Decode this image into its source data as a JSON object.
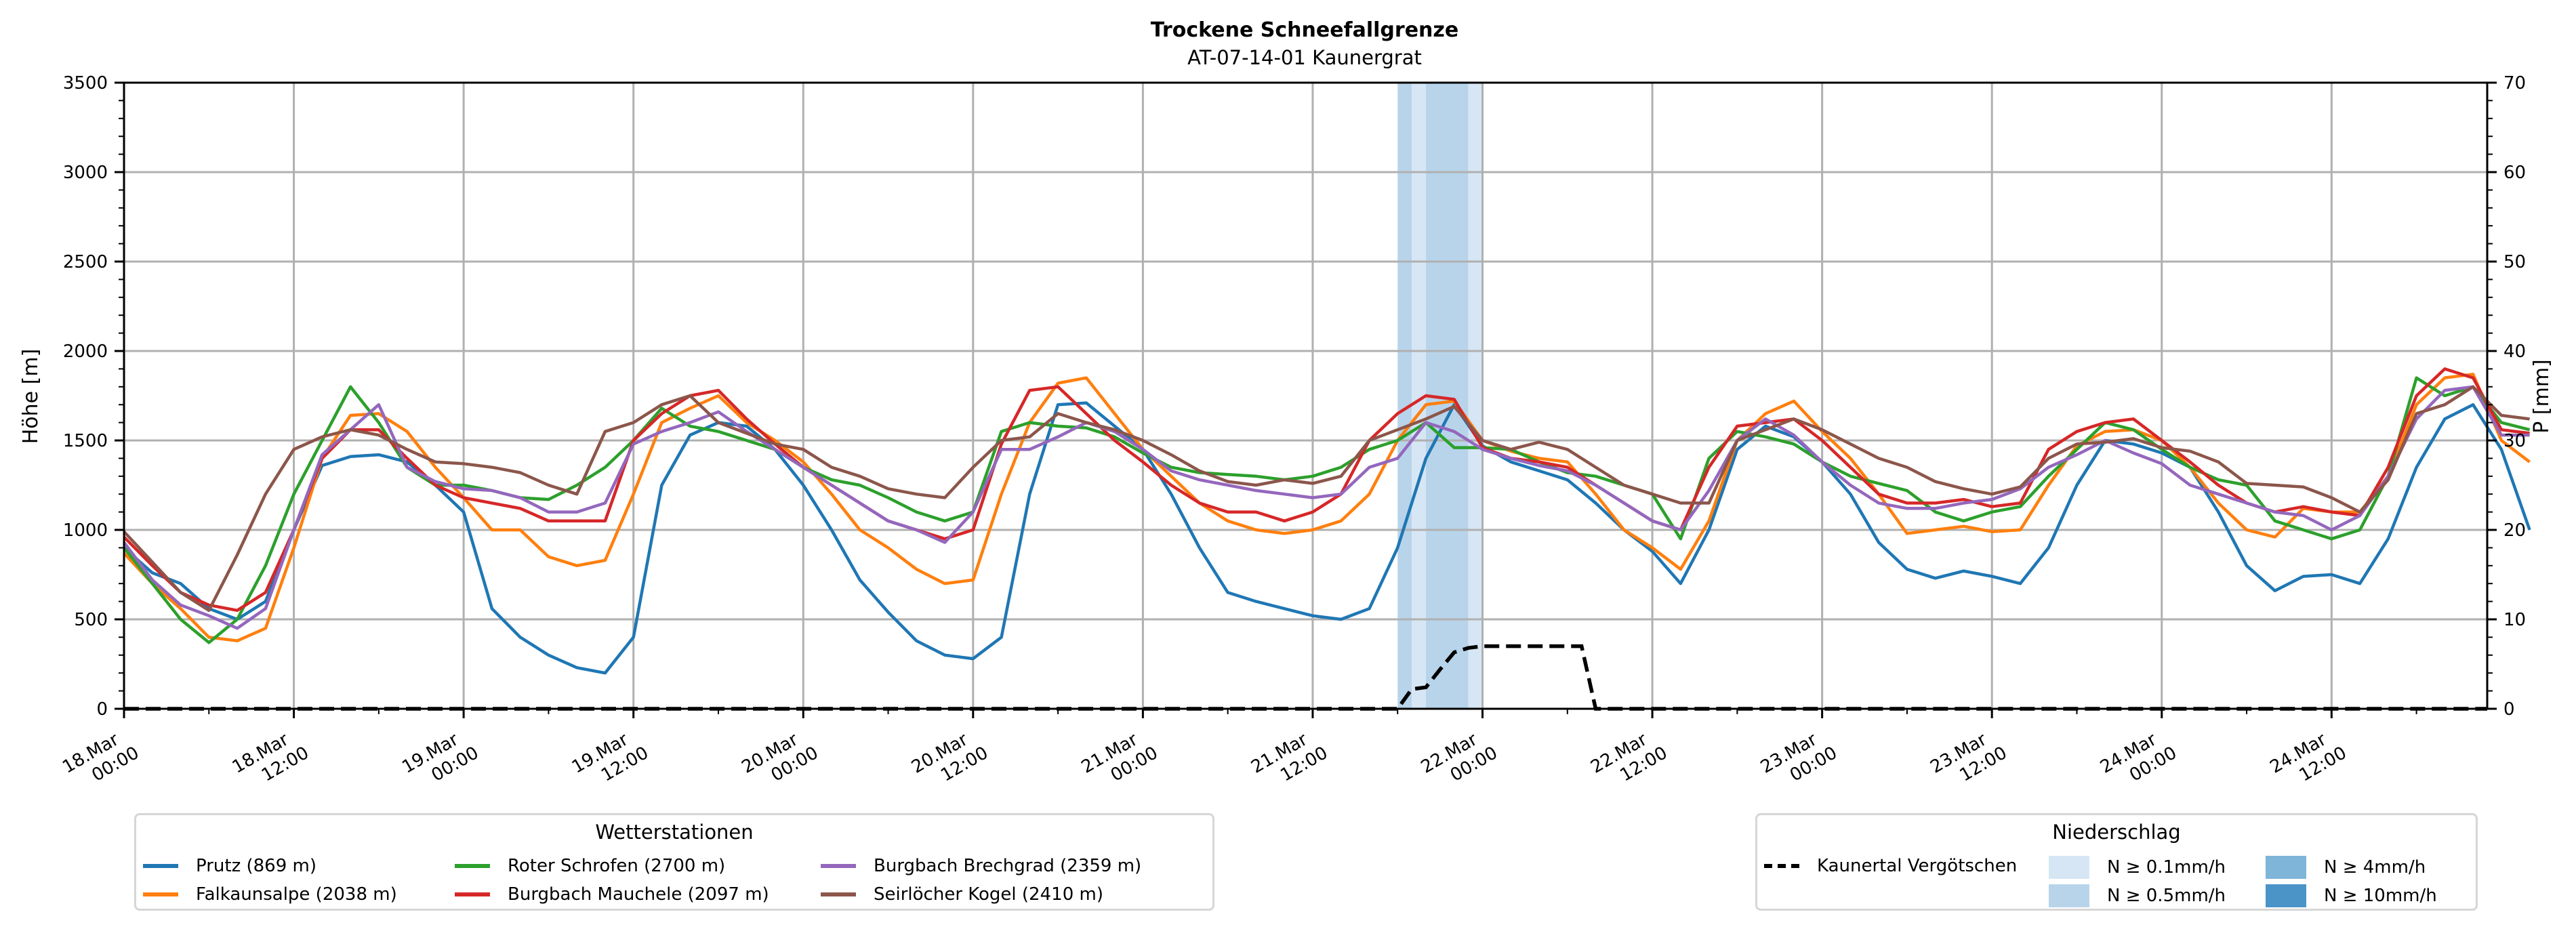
{
  "chart_data": {
    "type": "line",
    "title": "Trockene Schneefallgrenze",
    "subtitle": "AT-07-14-01 Kaunergrat",
    "ylabel_left": "Höhe [m]",
    "ylabel_right": "P [mm]",
    "ylim_left": [
      0,
      3500
    ],
    "ylim_right": [
      0,
      70
    ],
    "yticks_left": [
      "0",
      "500",
      "1000",
      "1500",
      "2000",
      "2500",
      "3000",
      "3500"
    ],
    "yticks_right": [
      "0",
      "10",
      "20",
      "30",
      "40",
      "50",
      "60",
      "70"
    ],
    "grid": true,
    "x_unit": "hours since 18.Mar 00:00",
    "x_range_hours": [
      0,
      167
    ],
    "x_ticks": [
      {
        "hour": 0,
        "line1": "18.Mar",
        "line2": "00:00"
      },
      {
        "hour": 12,
        "line1": "18.Mar",
        "line2": "12:00"
      },
      {
        "hour": 24,
        "line1": "19.Mar",
        "line2": "00:00"
      },
      {
        "hour": 36,
        "line1": "19.Mar",
        "line2": "12:00"
      },
      {
        "hour": 48,
        "line1": "20.Mar",
        "line2": "00:00"
      },
      {
        "hour": 60,
        "line1": "20.Mar",
        "line2": "12:00"
      },
      {
        "hour": 72,
        "line1": "21.Mar",
        "line2": "00:00"
      },
      {
        "hour": 84,
        "line1": "21.Mar",
        "line2": "12:00"
      },
      {
        "hour": 96,
        "line1": "22.Mar",
        "line2": "00:00"
      },
      {
        "hour": 108,
        "line1": "22.Mar",
        "line2": "12:00"
      },
      {
        "hour": 120,
        "line1": "23.Mar",
        "line2": "00:00"
      },
      {
        "hour": 132,
        "line1": "23.Mar",
        "line2": "12:00"
      },
      {
        "hour": 144,
        "line1": "24.Mar",
        "line2": "00:00"
      },
      {
        "hour": 156,
        "line1": "24.Mar",
        "line2": "12:00"
      }
    ],
    "x_step_hours": 2,
    "series": [
      {
        "name": "Prutz (869 m)",
        "color": "#1f77b4",
        "values": [
          900,
          760,
          700,
          560,
          500,
          600,
          1000,
          1360,
          1410,
          1420,
          1380,
          1250,
          1100,
          560,
          400,
          300,
          230,
          200,
          400,
          1250,
          1530,
          1600,
          1580,
          1450,
          1250,
          1000,
          720,
          540,
          380,
          300,
          280,
          400,
          1200,
          1700,
          1710,
          1580,
          1450,
          1200,
          900,
          650,
          600,
          560,
          520,
          500,
          560,
          900,
          1400,
          1700,
          1470,
          1380,
          1330,
          1280,
          1150,
          1000,
          880,
          700,
          1000,
          1450,
          1580,
          1520,
          1380,
          1200,
          930,
          780,
          730,
          770,
          740,
          700,
          900,
          1250,
          1500,
          1480,
          1430,
          1350,
          1100,
          800,
          660,
          740,
          750,
          700,
          950,
          1350,
          1620,
          1700,
          1450,
          1000
        ]
      },
      {
        "name": "Falkaunsalpe (2038 m)",
        "color": "#ff7f0e",
        "values": [
          870,
          700,
          560,
          400,
          380,
          450,
          900,
          1400,
          1640,
          1650,
          1550,
          1350,
          1180,
          1000,
          1000,
          850,
          800,
          830,
          1200,
          1600,
          1680,
          1750,
          1600,
          1500,
          1380,
          1200,
          1000,
          900,
          780,
          700,
          720,
          1200,
          1600,
          1820,
          1850,
          1650,
          1450,
          1300,
          1150,
          1050,
          1000,
          980,
          1000,
          1050,
          1200,
          1500,
          1700,
          1720,
          1500,
          1440,
          1400,
          1380,
          1200,
          1000,
          900,
          780,
          1050,
          1500,
          1650,
          1720,
          1550,
          1400,
          1200,
          980,
          1000,
          1020,
          990,
          1000,
          1250,
          1470,
          1550,
          1560,
          1500,
          1350,
          1150,
          1000,
          960,
          1120,
          1100,
          1100,
          1300,
          1700,
          1850,
          1870,
          1500,
          1380
        ]
      },
      {
        "name": "Roter Schrofen (2700 m)",
        "color": "#2ca02c",
        "values": [
          900,
          700,
          500,
          370,
          500,
          800,
          1200,
          1500,
          1800,
          1600,
          1350,
          1250,
          1250,
          1220,
          1180,
          1170,
          1250,
          1350,
          1500,
          1680,
          1580,
          1550,
          1500,
          1450,
          1350,
          1280,
          1250,
          1180,
          1100,
          1050,
          1100,
          1550,
          1600,
          1580,
          1570,
          1520,
          1430,
          1350,
          1320,
          1310,
          1300,
          1280,
          1300,
          1350,
          1450,
          1500,
          1600,
          1460,
          1460,
          1450,
          1380,
          1320,
          1300,
          1250,
          1200,
          950,
          1400,
          1550,
          1520,
          1480,
          1380,
          1300,
          1260,
          1220,
          1100,
          1050,
          1100,
          1130,
          1300,
          1450,
          1600,
          1560,
          1450,
          1350,
          1280,
          1250,
          1050,
          1000,
          950,
          1000,
          1300,
          1850,
          1750,
          1800,
          1600,
          1560
        ]
      },
      {
        "name": "Burgbach Mauchele (2097 m)",
        "color": "#d62728",
        "values": [
          960,
          800,
          650,
          580,
          550,
          650,
          1000,
          1400,
          1560,
          1560,
          1400,
          1250,
          1180,
          1150,
          1120,
          1050,
          1050,
          1050,
          1500,
          1650,
          1750,
          1780,
          1620,
          1480,
          1350,
          1250,
          1150,
          1050,
          1000,
          950,
          1000,
          1480,
          1780,
          1800,
          1650,
          1500,
          1380,
          1250,
          1150,
          1100,
          1100,
          1050,
          1100,
          1200,
          1500,
          1650,
          1750,
          1730,
          1460,
          1400,
          1380,
          1350,
          1250,
          1150,
          1050,
          1000,
          1350,
          1580,
          1600,
          1620,
          1500,
          1350,
          1200,
          1150,
          1150,
          1170,
          1130,
          1150,
          1450,
          1550,
          1600,
          1620,
          1500,
          1380,
          1250,
          1150,
          1100,
          1130,
          1100,
          1080,
          1350,
          1750,
          1900,
          1850,
          1560,
          1540
        ]
      },
      {
        "name": "Burgbach Brechgrad (2359 m)",
        "color": "#9467bd",
        "values": [
          930,
          720,
          580,
          520,
          450,
          560,
          1000,
          1420,
          1560,
          1700,
          1350,
          1270,
          1230,
          1220,
          1180,
          1100,
          1100,
          1150,
          1480,
          1550,
          1600,
          1660,
          1550,
          1450,
          1350,
          1250,
          1150,
          1050,
          1000,
          930,
          1100,
          1450,
          1450,
          1520,
          1600,
          1550,
          1450,
          1330,
          1280,
          1250,
          1220,
          1200,
          1180,
          1200,
          1350,
          1400,
          1600,
          1550,
          1450,
          1400,
          1360,
          1330,
          1250,
          1150,
          1050,
          1000,
          1220,
          1500,
          1620,
          1530,
          1380,
          1250,
          1150,
          1120,
          1120,
          1150,
          1170,
          1230,
          1350,
          1420,
          1500,
          1430,
          1370,
          1250,
          1200,
          1150,
          1100,
          1080,
          1000,
          1080,
          1300,
          1620,
          1780,
          1800,
          1530,
          1530
        ]
      },
      {
        "name": "Seirlöcher Kogel (2410 m)",
        "color": "#8c564b",
        "values": [
          990,
          820,
          650,
          550,
          860,
          1200,
          1450,
          1520,
          1560,
          1530,
          1450,
          1380,
          1370,
          1350,
          1320,
          1250,
          1200,
          1550,
          1600,
          1700,
          1750,
          1600,
          1540,
          1480,
          1450,
          1350,
          1300,
          1230,
          1200,
          1180,
          1350,
          1500,
          1520,
          1650,
          1600,
          1560,
          1500,
          1420,
          1330,
          1270,
          1250,
          1280,
          1260,
          1300,
          1500,
          1560,
          1620,
          1690,
          1500,
          1450,
          1490,
          1450,
          1350,
          1250,
          1200,
          1150,
          1150,
          1500,
          1560,
          1620,
          1560,
          1480,
          1400,
          1350,
          1270,
          1230,
          1200,
          1240,
          1400,
          1480,
          1490,
          1510,
          1460,
          1440,
          1380,
          1260,
          1250,
          1240,
          1180,
          1100,
          1280,
          1650,
          1700,
          1800,
          1640,
          1620
        ]
      }
    ],
    "precip_line": {
      "name": "Kaunertal Vergötschen",
      "color": "#000000",
      "points": [
        [
          0,
          0
        ],
        [
          90,
          0
        ],
        [
          91,
          2.2
        ],
        [
          92,
          2.4
        ],
        [
          93,
          4.4
        ],
        [
          94,
          6.3
        ],
        [
          95,
          6.8
        ],
        [
          96,
          7.0
        ],
        [
          103,
          7.0
        ],
        [
          104,
          0
        ],
        [
          167,
          0
        ]
      ]
    },
    "precip_bands": [
      {
        "start_hour": 90,
        "end_hour": 91,
        "level": "N ≥ 0.5mm/h"
      },
      {
        "start_hour": 91,
        "end_hour": 92,
        "level": "N ≥ 0.1mm/h"
      },
      {
        "start_hour": 92,
        "end_hour": 95,
        "level": "N ≥ 0.5mm/h"
      },
      {
        "start_hour": 95,
        "end_hour": 96,
        "level": "N ≥ 0.1mm/h"
      }
    ],
    "legend_stations": {
      "title": "Wetterstationen",
      "placement": "bottom-left"
    },
    "legend_precip": {
      "title": "Niederschlag",
      "placement": "bottom-right",
      "entries": [
        {
          "label": "Kaunertal Vergötschen",
          "kind": "dashed-line",
          "color": "#000000"
        },
        {
          "label": "N ≥ 0.1mm/h",
          "kind": "box",
          "color": "#d6e6f4"
        },
        {
          "label": "N ≥ 0.5mm/h",
          "kind": "box",
          "color": "#b8d4ea"
        },
        {
          "label": "N ≥ 4mm/h",
          "kind": "box",
          "color": "#7fb5d8"
        },
        {
          "label": "N ≥ 10mm/h",
          "kind": "box",
          "color": "#4a94c8"
        }
      ]
    }
  }
}
